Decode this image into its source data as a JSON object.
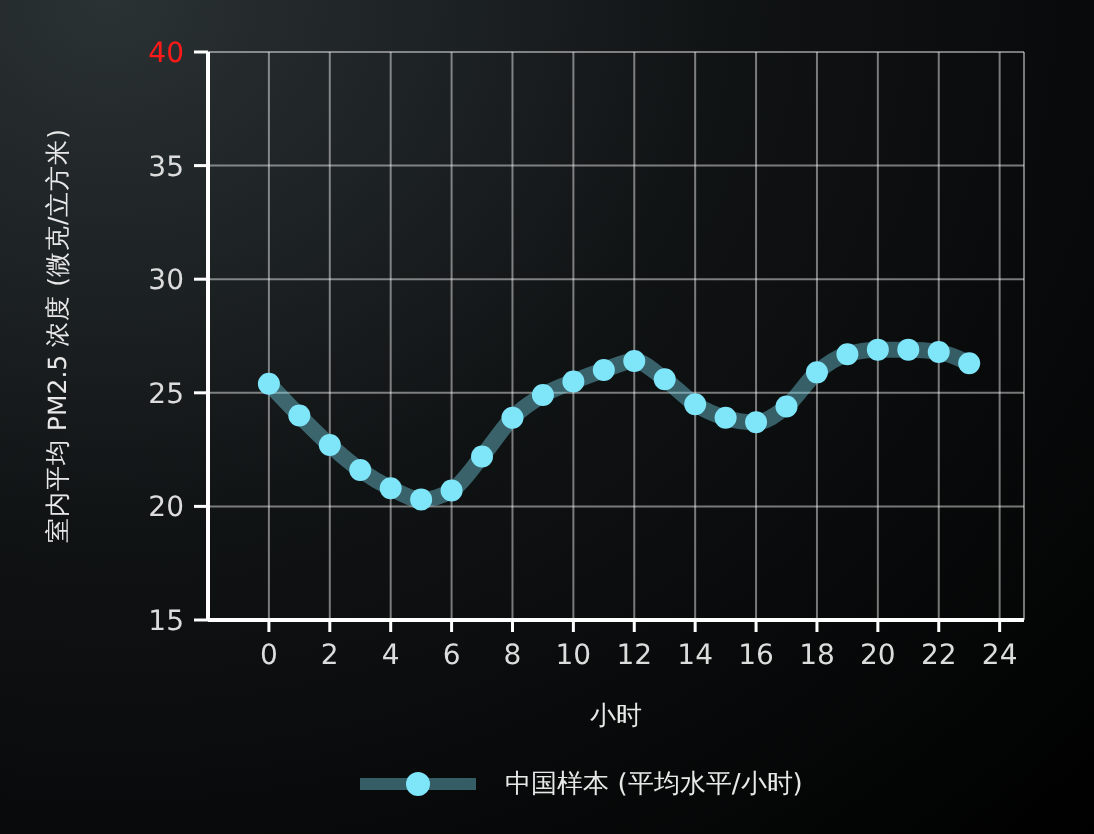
{
  "chart_data": {
    "type": "line",
    "ylabel": "室内平均 PM2.5 浓度 (微克/立方米)",
    "xlabel": "小时",
    "x": [
      0,
      1,
      2,
      3,
      4,
      5,
      6,
      7,
      8,
      9,
      10,
      11,
      12,
      13,
      14,
      15,
      16,
      17,
      18,
      19,
      20,
      21,
      22,
      23
    ],
    "series": [
      {
        "name": "中国样本 (平均水平/小时)",
        "color": "#7fe6fa",
        "values": [
          25.4,
          24.0,
          22.7,
          21.6,
          20.8,
          20.3,
          20.7,
          22.2,
          23.9,
          24.9,
          25.5,
          26.0,
          26.4,
          25.6,
          24.5,
          23.9,
          23.7,
          24.4,
          25.9,
          26.7,
          26.9,
          26.9,
          26.8,
          26.3
        ]
      }
    ],
    "xlim": [
      -2,
      24.8
    ],
    "xticks": [
      0,
      2,
      4,
      6,
      8,
      10,
      12,
      14,
      16,
      18,
      20,
      22,
      24
    ],
    "ylim": [
      15,
      40
    ],
    "yticks": [
      15,
      20,
      25,
      30,
      35,
      40
    ],
    "grid": true,
    "legend": "bottom",
    "marker": "circle",
    "line_style": "solid"
  }
}
